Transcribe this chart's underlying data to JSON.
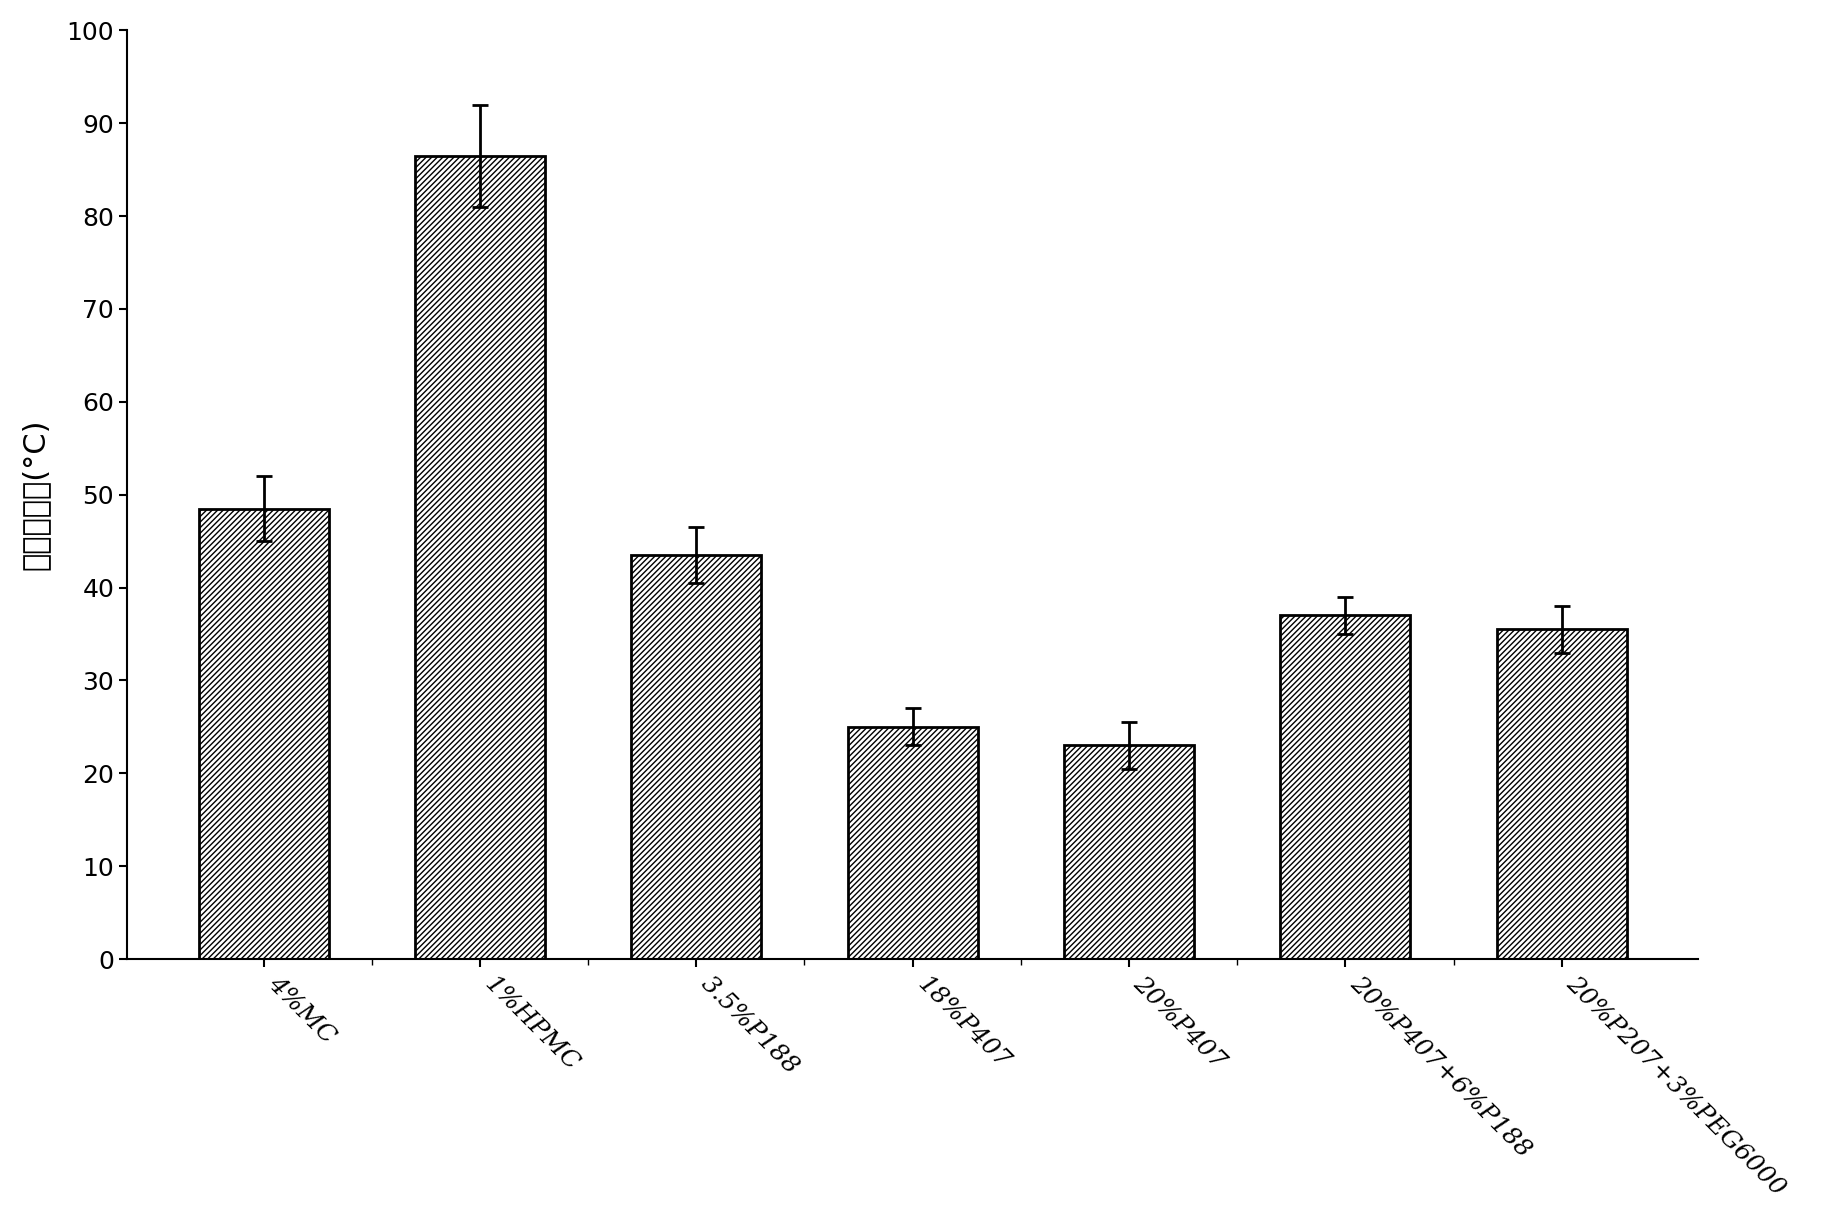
{
  "categories": [
    "4%MC",
    "1%HPMC",
    "3.5%P188",
    "18%P407",
    "20%P407",
    "20%P407+6%P188",
    "20%P207+3%PEG6000"
  ],
  "values": [
    48.5,
    86.5,
    43.5,
    25.0,
    23.0,
    37.0,
    35.5
  ],
  "errors": [
    3.5,
    5.5,
    3.0,
    2.0,
    2.5,
    2.0,
    2.5
  ],
  "ylabel": "胶凝温度／(°C)",
  "ylim": [
    0,
    100
  ],
  "yticks": [
    0,
    10,
    20,
    30,
    40,
    50,
    60,
    70,
    80,
    90,
    100
  ],
  "background_color": "#ffffff",
  "bar_width": 0.6,
  "ylabel_fontsize": 22,
  "tick_fontsize": 18,
  "xtick_rotation": -45,
  "hatch": "//////",
  "bar_edgecolor": "#000000",
  "bar_facecolor": "#ffffff",
  "bar_linewidth": 2.0,
  "capsize": 6,
  "error_linewidth": 2.0
}
